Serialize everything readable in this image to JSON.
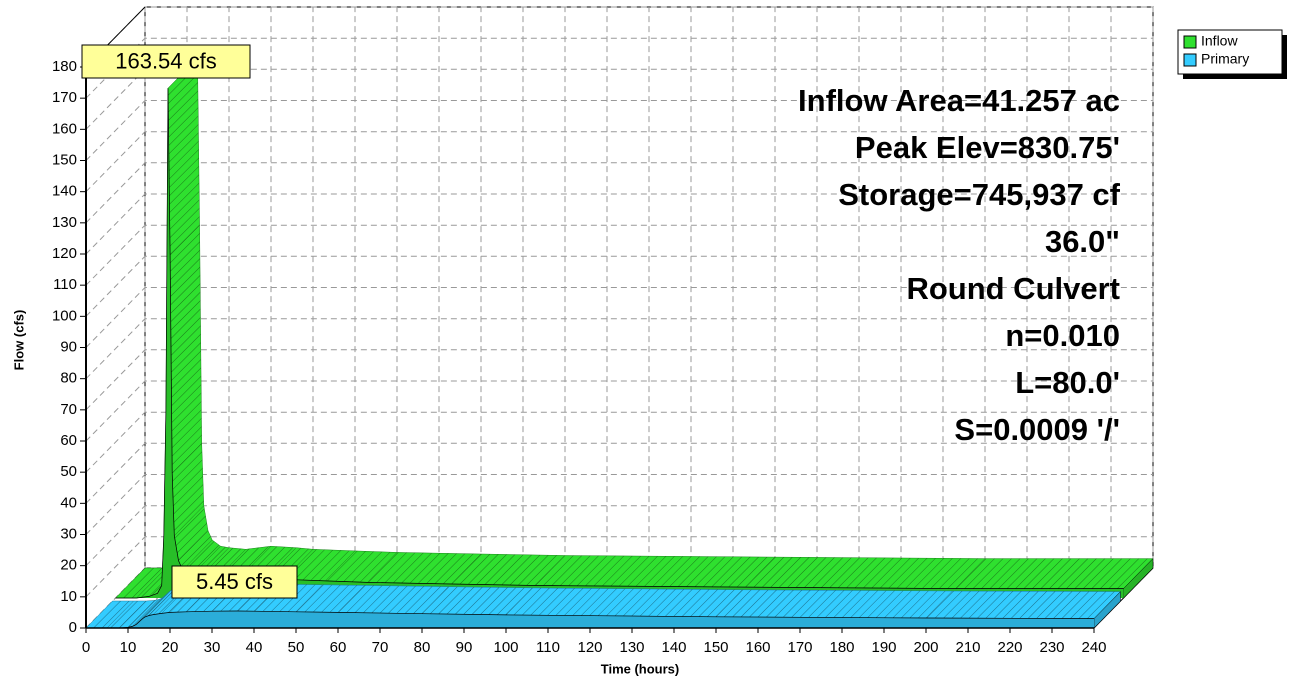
{
  "chart_data": {
    "type": "area3d",
    "x_label": "Time  (hours)",
    "y_label": "Flow  (cfs)",
    "x": [
      0,
      5,
      8,
      10,
      11,
      11.5,
      12,
      12.5,
      13,
      13.5,
      14,
      15,
      16,
      18,
      20,
      24,
      30,
      36,
      40,
      50,
      60,
      80,
      100,
      150,
      200,
      240
    ],
    "series": [
      {
        "name": "Inflow",
        "color": "#2fe02f",
        "values": [
          0,
          0,
          0.5,
          1.5,
          4,
          20,
          60,
          163.54,
          110,
          40,
          20,
          12,
          9,
          7,
          6.5,
          6,
          7,
          6.5,
          6,
          5.5,
          5,
          4.5,
          4,
          3.5,
          3,
          3
        ]
      },
      {
        "name": "Primary",
        "color": "#33ccff",
        "values": [
          0,
          0,
          0,
          0.2,
          0.5,
          0.8,
          1.2,
          1.8,
          2.4,
          3,
          3.5,
          4,
          4.3,
          4.7,
          5,
          5.2,
          5.4,
          5.45,
          5.4,
          5.2,
          5,
          4.6,
          4.2,
          3.6,
          3.2,
          3
        ]
      }
    ],
    "annotations": [
      "163.54 cfs",
      "5.45 cfs"
    ],
    "info_lines": [
      "Inflow Area=41.257 ac",
      "Peak Elev=830.75'",
      "Storage=745,937 cf",
      "36.0\"",
      "Round Culvert",
      "n=0.010",
      "L=80.0'",
      "S=0.0009 '/'"
    ],
    "xlim": [
      0,
      240
    ],
    "xticks": [
      0,
      10,
      20,
      30,
      40,
      50,
      60,
      70,
      80,
      90,
      100,
      110,
      120,
      130,
      140,
      150,
      160,
      170,
      180,
      190,
      200,
      210,
      220,
      230,
      240
    ],
    "ylim": [
      0,
      180
    ],
    "yticks": [
      0,
      10,
      20,
      30,
      40,
      50,
      60,
      70,
      80,
      90,
      100,
      110,
      120,
      130,
      140,
      150,
      160,
      170,
      180
    ],
    "grid": true,
    "legend": "top-right"
  }
}
